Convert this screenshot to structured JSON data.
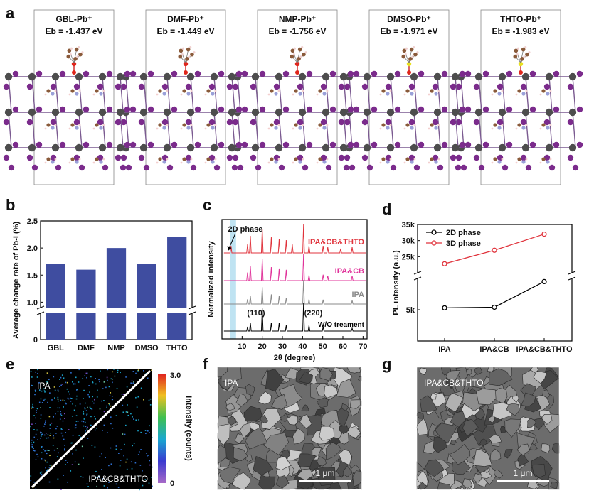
{
  "panels": {
    "a": {
      "letter": "a",
      "structures": [
        {
          "title": "GBL-Pb⁺",
          "energy": "Eb = -1.437 eV",
          "adsorbate": "GBL"
        },
        {
          "title": "DMF-Pb⁺",
          "energy": "Eb = -1.449 eV",
          "adsorbate": "DMF"
        },
        {
          "title": "NMP-Pb⁺",
          "energy": "Eb = -1.756 eV",
          "adsorbate": "NMP"
        },
        {
          "title": "DMSO-Pb⁺",
          "energy": "Eb = -1.971 eV",
          "adsorbate": "DMSO"
        },
        {
          "title": "THTO-Pb⁺",
          "energy": "Eb = -1.983 eV",
          "adsorbate": "THTO"
        }
      ]
    },
    "b": {
      "letter": "b"
    },
    "c": {
      "letter": "c"
    },
    "d": {
      "letter": "d"
    },
    "e": {
      "letter": "e",
      "label_top": "IPA",
      "label_bottom": "IPA&CB&THTO",
      "colorbar_label": "Intensity (counts)",
      "colorbar_max": "3.0",
      "colorbar_min": "0"
    },
    "f": {
      "letter": "f",
      "label": "IPA",
      "scalebar": "1 μm"
    },
    "g": {
      "letter": "g",
      "label": "IPA&CB&THTO",
      "scalebar": "1 μm"
    }
  },
  "colors": {
    "bar": "#3f4da0",
    "pb": "#4d4d4d",
    "iodine": "#7b2b8c",
    "carbon": "#8a5a3a",
    "nitrogen": "#9aa0d8",
    "oxygen": "#e0261c",
    "sulfur": "#e8e020",
    "red": "#e0333c",
    "pink": "#e0339a",
    "gray": "#8a8a8a",
    "black": "#000000",
    "highlight": "#bfe3f2"
  },
  "chart_data": [
    {
      "panel": "b",
      "type": "bar",
      "categories": [
        "GBL",
        "DMF",
        "NMP",
        "DMSO",
        "THTO"
      ],
      "values": [
        1.7,
        1.6,
        2.0,
        1.7,
        2.2
      ],
      "ylabel": "Average change rate of Pb-I (%)",
      "ylim": [
        0,
        2.5
      ],
      "axis_break": [
        0.3,
        0.9
      ],
      "yticks": [
        "0",
        "1.0",
        "1.5",
        "2.0",
        "2.5"
      ]
    },
    {
      "panel": "c",
      "type": "line",
      "xlabel": "2θ (degree)",
      "ylabel": "Normalized intensity",
      "xlim": [
        0,
        72
      ],
      "xticks": [
        "10",
        "20",
        "30",
        "40",
        "50",
        "60",
        "70"
      ],
      "highlight_x": [
        4.0,
        7.0
      ],
      "annotations": [
        "2D phase",
        "(110)",
        "(220)"
      ],
      "series": [
        {
          "name": "IPA&CB&THTO",
          "color": "red",
          "peaks": [
            [
              4.5,
              0.25
            ],
            [
              12.7,
              0.3
            ],
            [
              14.1,
              0.6
            ],
            [
              20.0,
              0.85
            ],
            [
              24.5,
              0.55
            ],
            [
              28.4,
              0.5
            ],
            [
              31.9,
              0.45
            ],
            [
              34.9,
              0.3
            ],
            [
              40.5,
              1.0
            ],
            [
              43.2,
              0.25
            ],
            [
              50.2,
              0.25
            ],
            [
              52.5,
              0.2
            ],
            [
              58.9,
              0.15
            ],
            [
              64.6,
              0.2
            ]
          ]
        },
        {
          "name": "IPA&CB",
          "color": "pink",
          "peaks": [
            [
              12.7,
              0.3
            ],
            [
              14.1,
              0.55
            ],
            [
              20.0,
              0.8
            ],
            [
              24.5,
              0.5
            ],
            [
              28.4,
              0.45
            ],
            [
              31.9,
              0.4
            ],
            [
              40.5,
              1.0
            ],
            [
              43.2,
              0.2
            ],
            [
              50.2,
              0.22
            ],
            [
              52.5,
              0.18
            ],
            [
              64.6,
              0.18
            ]
          ]
        },
        {
          "name": "IPA",
          "color": "gray",
          "peaks": [
            [
              12.7,
              0.2
            ],
            [
              14.1,
              0.35
            ],
            [
              20.0,
              0.7
            ],
            [
              24.5,
              0.4
            ],
            [
              28.4,
              0.35
            ],
            [
              31.9,
              0.25
            ],
            [
              40.5,
              1.0
            ],
            [
              43.2,
              0.2
            ],
            [
              50.2,
              0.18
            ],
            [
              64.6,
              0.15
            ]
          ]
        },
        {
          "name": "W/O treament",
          "color": "black",
          "peaks": [
            [
              12.7,
              0.15
            ],
            [
              14.1,
              0.3
            ],
            [
              20.0,
              0.8
            ],
            [
              24.5,
              0.3
            ],
            [
              28.4,
              0.3
            ],
            [
              31.9,
              0.2
            ],
            [
              40.5,
              1.0
            ],
            [
              43.2,
              0.2
            ],
            [
              50.2,
              0.15
            ],
            [
              64.6,
              0.1
            ]
          ]
        }
      ]
    },
    {
      "panel": "d",
      "type": "line",
      "categories": [
        "IPA",
        "IPA&CB",
        "IPA&CB&THTO"
      ],
      "ylabel": "PL intensity (a.u.)",
      "yticks": [
        "5k",
        "25k",
        "30k",
        "35k"
      ],
      "legend": "top-left",
      "series": [
        {
          "name": "2D phase",
          "color": "black",
          "values": [
            5300,
            5400,
            9500
          ]
        },
        {
          "name": "3D phase",
          "color": "red",
          "values": [
            22800,
            27000,
            32000
          ]
        }
      ]
    }
  ]
}
